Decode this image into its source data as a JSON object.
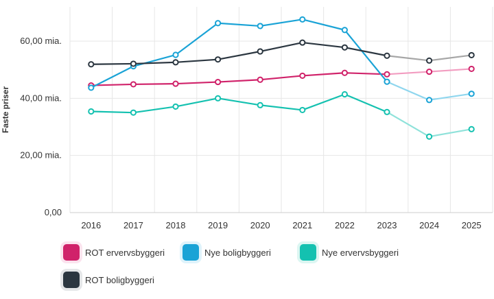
{
  "chart_data": {
    "type": "line",
    "title": "",
    "xlabel": "",
    "ylabel": "Faste priser",
    "categories": [
      "2016",
      "2017",
      "2018",
      "2019",
      "2020",
      "2021",
      "2022",
      "2023",
      "2024",
      "2025"
    ],
    "ylim": [
      0,
      72
    ],
    "yticks": [
      0,
      20,
      40,
      60
    ],
    "ytick_labels": [
      "0,00",
      "20,00 mia.",
      "40,00 mia.",
      "60,00 mia."
    ],
    "grid": true,
    "legend_position": "bottom-left",
    "projection_from": "2023",
    "series": [
      {
        "name": "ROT ervervsbyggeri",
        "color": "#d0226a",
        "values": [
          44.5,
          44.9,
          45.1,
          45.7,
          46.5,
          47.9,
          48.9,
          48.4,
          49.3,
          50.3
        ]
      },
      {
        "name": "Nye boligbyggeri",
        "color": "#1aa3d6",
        "values": [
          43.7,
          51.2,
          55.2,
          66.3,
          65.3,
          67.6,
          63.9,
          45.8,
          39.4,
          41.6
        ]
      },
      {
        "name": "Nye ervervsbyggeri",
        "color": "#14c1b0",
        "values": [
          35.4,
          35.0,
          37.1,
          40.0,
          37.6,
          35.9,
          41.4,
          35.2,
          26.6,
          29.2
        ]
      },
      {
        "name": "ROT boligbyggeri",
        "color": "#2b3640",
        "values": [
          51.9,
          52.1,
          52.6,
          53.6,
          56.4,
          59.5,
          57.8,
          54.9,
          53.2,
          55.1
        ]
      }
    ],
    "projection_colors": {
      "ROT ervervsbyggeri": "#f29cc0",
      "Nye boligbyggeri": "#8fd6ee",
      "Nye ervervsbyggeri": "#8fe2da",
      "ROT boligbyggeri": "#a6a6a6"
    }
  }
}
